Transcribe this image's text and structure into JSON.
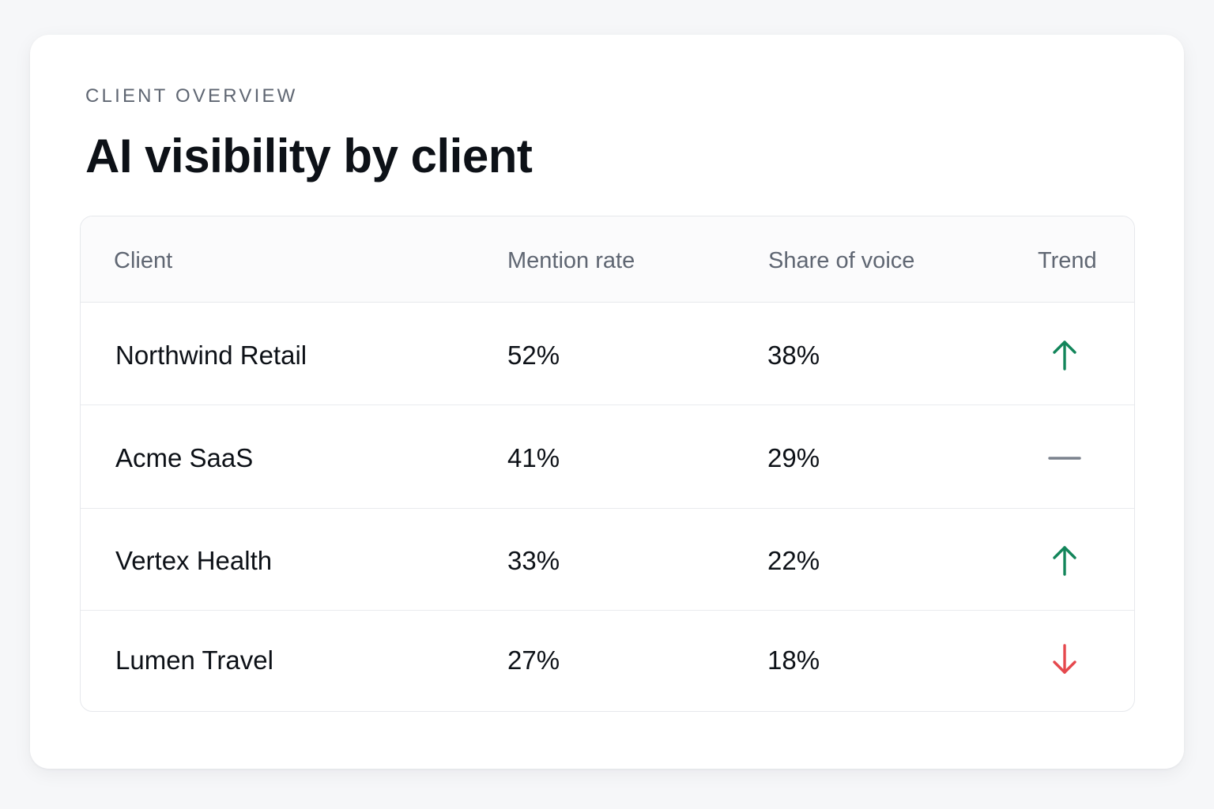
{
  "header": {
    "eyebrow": "CLIENT OVERVIEW",
    "title": "AI visibility by client"
  },
  "table": {
    "columns": [
      "Client",
      "Mention rate",
      "Share of voice",
      "Trend"
    ],
    "rows": [
      {
        "client": "Northwind Retail",
        "mention_rate": "52%",
        "share_of_voice": "38%",
        "trend": "up"
      },
      {
        "client": "Acme SaaS",
        "mention_rate": "41%",
        "share_of_voice": "29%",
        "trend": "flat"
      },
      {
        "client": "Vertex Health",
        "mention_rate": "33%",
        "share_of_voice": "22%",
        "trend": "up"
      },
      {
        "client": "Lumen Travel",
        "mention_rate": "27%",
        "share_of_voice": "18%",
        "trend": "down"
      }
    ]
  },
  "icons": {
    "up": "arrow-up-icon",
    "flat": "dash-icon",
    "down": "arrow-down-icon"
  },
  "colors": {
    "up": "#12855a",
    "flat": "#7b828d",
    "down": "#e5484d"
  }
}
